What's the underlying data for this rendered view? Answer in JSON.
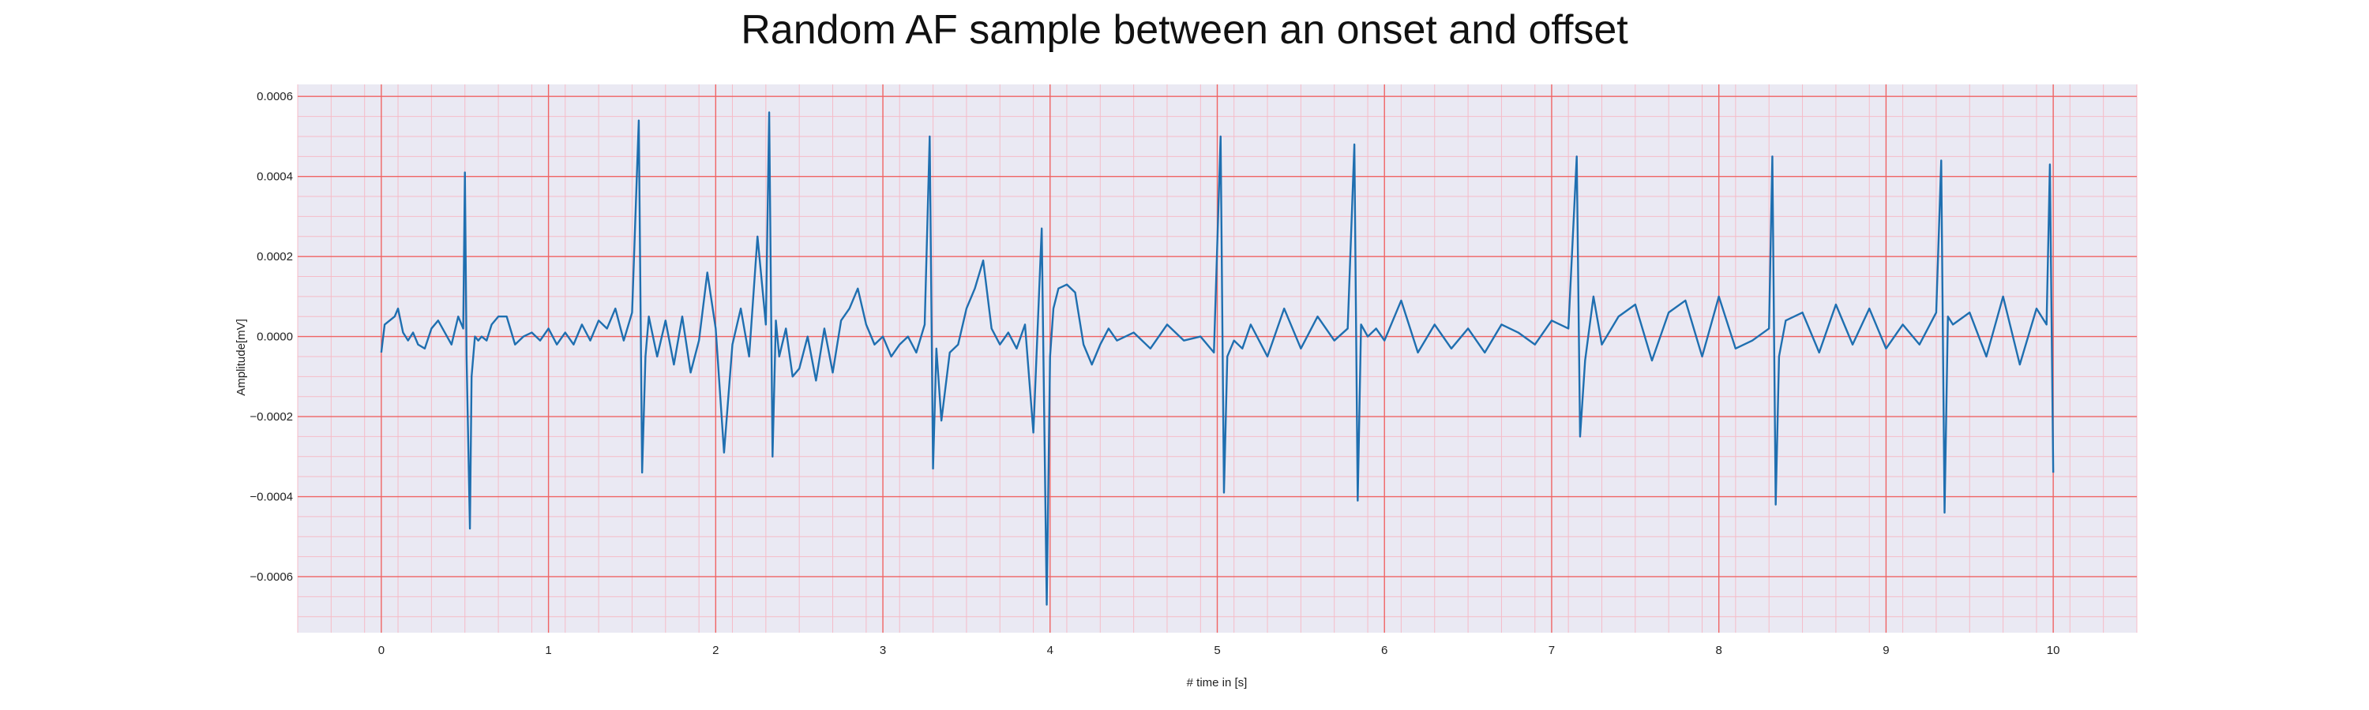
{
  "chart_data": {
    "type": "line",
    "title": "Random AF sample between an onset and offset",
    "xlabel": "# time in [s]",
    "ylabel": "Amplitude[mV]",
    "xlim": [
      -0.5,
      10.5
    ],
    "ylim": [
      -0.00074,
      0.00063
    ],
    "xticks": [
      0,
      1,
      2,
      3,
      4,
      5,
      6,
      7,
      8,
      9,
      10
    ],
    "yticks": [
      -0.0006,
      -0.0004,
      -0.0002,
      0.0,
      0.0002,
      0.0004,
      0.0006
    ],
    "ytick_labels": [
      "−0.0006",
      "−0.0004",
      "−0.0002",
      "0.0000",
      "0.0002",
      "0.0004",
      "0.0006"
    ],
    "grid": {
      "major": true,
      "minor": true,
      "major_color": "#f06464",
      "minor_color": "#f5bcc8"
    },
    "background": "#eae9f3",
    "line_color": "#1f6fb0",
    "series": [
      {
        "x": [
          0.0,
          0.02,
          0.05,
          0.08,
          0.1,
          0.13,
          0.16,
          0.19,
          0.22,
          0.26,
          0.3,
          0.34,
          0.38,
          0.42,
          0.46,
          0.49,
          0.5,
          0.51,
          0.53,
          0.54,
          0.56,
          0.58,
          0.6,
          0.63,
          0.66,
          0.7,
          0.75,
          0.8,
          0.85,
          0.9,
          0.95,
          1.0,
          1.05,
          1.1,
          1.15,
          1.2,
          1.25,
          1.3,
          1.35,
          1.4,
          1.45,
          1.5,
          1.54,
          1.56,
          1.58,
          1.6,
          1.65,
          1.7,
          1.75,
          1.8,
          1.85,
          1.9,
          1.95,
          2.0,
          2.05,
          2.1,
          2.15,
          2.2,
          2.25,
          2.3,
          2.32,
          2.34,
          2.36,
          2.38,
          2.42,
          2.46,
          2.5,
          2.55,
          2.6,
          2.65,
          2.7,
          2.75,
          2.8,
          2.85,
          2.9,
          2.95,
          3.0,
          3.05,
          3.1,
          3.15,
          3.2,
          3.25,
          3.28,
          3.3,
          3.32,
          3.35,
          3.4,
          3.45,
          3.5,
          3.55,
          3.6,
          3.65,
          3.7,
          3.75,
          3.8,
          3.85,
          3.9,
          3.95,
          3.98,
          4.0,
          4.02,
          4.05,
          4.1,
          4.15,
          4.2,
          4.25,
          4.3,
          4.35,
          4.4,
          4.5,
          4.6,
          4.7,
          4.8,
          4.9,
          4.98,
          5.02,
          5.04,
          5.06,
          5.1,
          5.15,
          5.2,
          5.3,
          5.4,
          5.5,
          5.6,
          5.7,
          5.78,
          5.82,
          5.84,
          5.86,
          5.9,
          5.95,
          6.0,
          6.1,
          6.2,
          6.3,
          6.4,
          6.5,
          6.6,
          6.7,
          6.8,
          6.9,
          7.0,
          7.1,
          7.15,
          7.17,
          7.2,
          7.25,
          7.3,
          7.4,
          7.5,
          7.6,
          7.7,
          7.8,
          7.9,
          8.0,
          8.1,
          8.2,
          8.3,
          8.32,
          8.34,
          8.36,
          8.4,
          8.5,
          8.6,
          8.7,
          8.8,
          8.9,
          9.0,
          9.1,
          9.2,
          9.3,
          9.33,
          9.35,
          9.37,
          9.4,
          9.5,
          9.6,
          9.7,
          9.8,
          9.9,
          9.96,
          9.98,
          10.0
        ],
        "y": [
          -4e-05,
          3e-05,
          4e-05,
          5e-05,
          7e-05,
          1e-05,
          -1e-05,
          1e-05,
          -2e-05,
          -3e-05,
          2e-05,
          4e-05,
          1e-05,
          -2e-05,
          5e-05,
          2e-05,
          0.00041,
          -5e-05,
          -0.00048,
          -0.0001,
          0.0,
          -1e-05,
          0.0,
          -1e-05,
          3e-05,
          5e-05,
          5e-05,
          -2e-05,
          0.0,
          1e-05,
          -1e-05,
          2e-05,
          -2e-05,
          1e-05,
          -2e-05,
          3e-05,
          -1e-05,
          4e-05,
          2e-05,
          7e-05,
          -1e-05,
          6e-05,
          0.00054,
          -0.00034,
          -5e-05,
          5e-05,
          -5e-05,
          4e-05,
          -7e-05,
          5e-05,
          -9e-05,
          -1e-05,
          0.00016,
          2e-05,
          -0.00029,
          -2e-05,
          7e-05,
          -5e-05,
          0.00025,
          3e-05,
          0.00056,
          -0.0003,
          4e-05,
          -5e-05,
          2e-05,
          -0.0001,
          -8e-05,
          0.0,
          -0.00011,
          2e-05,
          -9e-05,
          4e-05,
          7e-05,
          0.00012,
          3e-05,
          -2e-05,
          0.0,
          -5e-05,
          -2e-05,
          0.0,
          -4e-05,
          3e-05,
          0.0005,
          -0.00033,
          -3e-05,
          -0.00021,
          -4e-05,
          -2e-05,
          7e-05,
          0.00012,
          0.00019,
          2e-05,
          -2e-05,
          1e-05,
          -3e-05,
          3e-05,
          -0.00024,
          0.00027,
          -0.00067,
          -5e-05,
          7e-05,
          0.00012,
          0.00013,
          0.00011,
          -2e-05,
          -7e-05,
          -2e-05,
          2e-05,
          -1e-05,
          1e-05,
          -3e-05,
          3e-05,
          -1e-05,
          0.0,
          -4e-05,
          0.0005,
          -0.00039,
          -5e-05,
          -1e-05,
          -3e-05,
          3e-05,
          -5e-05,
          7e-05,
          -3e-05,
          5e-05,
          -1e-05,
          2e-05,
          0.00048,
          -0.00041,
          3e-05,
          0.0,
          2e-05,
          -1e-05,
          9e-05,
          -4e-05,
          3e-05,
          -3e-05,
          2e-05,
          -4e-05,
          3e-05,
          1e-05,
          -2e-05,
          4e-05,
          2e-05,
          0.00045,
          -0.00025,
          -6e-05,
          0.0001,
          -2e-05,
          5e-05,
          8e-05,
          -6e-05,
          6e-05,
          9e-05,
          -5e-05,
          0.0001,
          -3e-05,
          -1e-05,
          2e-05,
          0.00045,
          -0.00042,
          -5e-05,
          4e-05,
          6e-05,
          -4e-05,
          8e-05,
          -2e-05,
          7e-05,
          -3e-05,
          3e-05,
          -2e-05,
          6e-05,
          0.00044,
          -0.00044,
          5e-05,
          3e-05,
          6e-05,
          -5e-05,
          0.0001,
          -7e-05,
          7e-05,
          3e-05,
          0.00043,
          -0.00034
        ]
      }
    ]
  }
}
